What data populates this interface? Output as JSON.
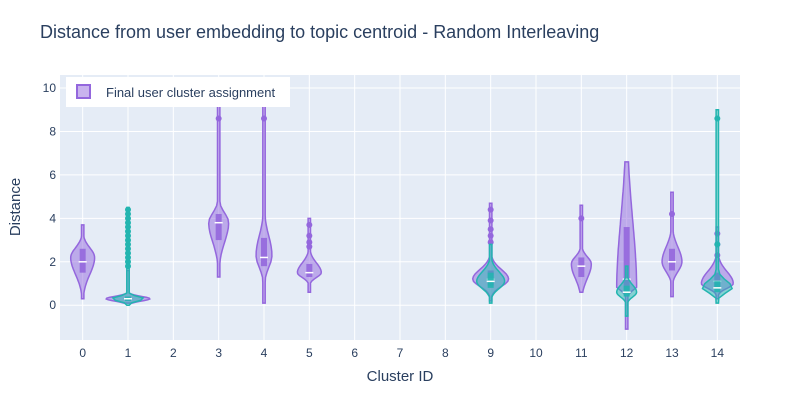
{
  "colors": {
    "plot_bg": "#e5ecf6",
    "grid": "#ffffff",
    "text": "#2a3f5f",
    "purple": "#9467dd",
    "purple_fill": "rgba(148,103,221,0.5)",
    "teal": "#23b5b0",
    "teal_fill": "rgba(35,181,176,0.5)"
  },
  "chart_data": {
    "type": "violin",
    "title": "Distance from user embedding to topic centroid - Random Interleaving",
    "xlabel": "Cluster ID",
    "ylabel": "Distance",
    "categories": [
      "0",
      "1",
      "2",
      "3",
      "4",
      "5",
      "6",
      "7",
      "8",
      "9",
      "10",
      "11",
      "12",
      "13",
      "14"
    ],
    "yticks": [
      "0",
      "2",
      "4",
      "6",
      "8",
      "10"
    ],
    "ylim": [
      -1.6,
      10.6
    ],
    "grid": true,
    "legend": {
      "placement": "top-left",
      "entries": [
        "Final user cluster assignment"
      ]
    },
    "series": [
      {
        "name": "Final user cluster assignment",
        "color": "purple",
        "groups": [
          {
            "x": "0",
            "min": 0.3,
            "q1": 1.5,
            "median": 2.0,
            "q3": 2.6,
            "max": 3.7,
            "peak": 2.2,
            "halfwidth": 0.12,
            "outliers": []
          },
          {
            "x": "1",
            "min": 0.1,
            "q1": 0.2,
            "median": 0.3,
            "q3": 0.4,
            "max": 1.6,
            "peak": 0.3,
            "halfwidth": 0.22,
            "outliers": []
          },
          {
            "x": "3",
            "min": 1.3,
            "q1": 3.0,
            "median": 3.8,
            "q3": 4.2,
            "max": 9.5,
            "peak": 3.8,
            "halfwidth": 0.1,
            "outliers": [
              8.6
            ]
          },
          {
            "x": "4",
            "min": 0.1,
            "q1": 1.8,
            "median": 2.2,
            "q3": 3.1,
            "max": 9.6,
            "peak": 2.3,
            "halfwidth": 0.08,
            "outliers": [
              8.6
            ]
          },
          {
            "x": "5",
            "min": 0.6,
            "q1": 1.3,
            "median": 1.5,
            "q3": 1.9,
            "max": 4.0,
            "peak": 1.5,
            "halfwidth": 0.12,
            "outliers": [
              3.7,
              3.2,
              2.9,
              2.7
            ]
          },
          {
            "x": "9",
            "min": 0.2,
            "q1": 0.9,
            "median": 1.2,
            "q3": 1.6,
            "max": 4.7,
            "peak": 1.2,
            "halfwidth": 0.18,
            "outliers": [
              4.4,
              3.9,
              3.5,
              3.2,
              2.9
            ]
          },
          {
            "x": "11",
            "min": 0.6,
            "q1": 1.3,
            "median": 1.8,
            "q3": 2.2,
            "max": 4.6,
            "peak": 1.9,
            "halfwidth": 0.1,
            "outliers": [
              4.0
            ]
          },
          {
            "x": "12",
            "min": -1.1,
            "q1": 0.7,
            "median": 1.2,
            "q3": 3.6,
            "max": 6.6,
            "peak": 0.7,
            "halfwidth": 0.1,
            "outliers": []
          },
          {
            "x": "13",
            "min": 0.4,
            "q1": 1.6,
            "median": 2.0,
            "q3": 2.6,
            "max": 5.2,
            "peak": 2.0,
            "halfwidth": 0.1,
            "outliers": [
              4.2
            ]
          },
          {
            "x": "14",
            "min": 0.3,
            "q1": 0.8,
            "median": 1.1,
            "q3": 1.5,
            "max": 3.6,
            "peak": 1.0,
            "halfwidth": 0.16,
            "outliers": [
              3.3,
              2.8,
              2.3
            ]
          }
        ]
      },
      {
        "name": "",
        "color": "teal",
        "groups": [
          {
            "x": "1",
            "min": 0.0,
            "q1": 0.2,
            "median": 0.3,
            "q3": 0.4,
            "max": 4.5,
            "peak": 0.3,
            "halfwidth": 0.16,
            "outliers": [
              4.4,
              4.2,
              4.0,
              3.8,
              3.6,
              3.4,
              3.2,
              3.0,
              2.8,
              2.6,
              2.4,
              2.2,
              2.0,
              1.8
            ]
          },
          {
            "x": "9",
            "min": 0.1,
            "q1": 0.8,
            "median": 1.1,
            "q3": 1.5,
            "max": 2.8,
            "peak": 1.1,
            "halfwidth": 0.14,
            "outliers": []
          },
          {
            "x": "12",
            "min": -0.5,
            "q1": 0.4,
            "median": 0.6,
            "q3": 0.9,
            "max": 1.8,
            "peak": 0.6,
            "halfwidth": 0.1,
            "outliers": []
          },
          {
            "x": "14",
            "min": 0.1,
            "q1": 0.6,
            "median": 0.8,
            "q3": 1.1,
            "max": 9.0,
            "peak": 0.8,
            "halfwidth": 0.15,
            "outliers": [
              8.6,
              2.8
            ]
          }
        ]
      }
    ]
  }
}
